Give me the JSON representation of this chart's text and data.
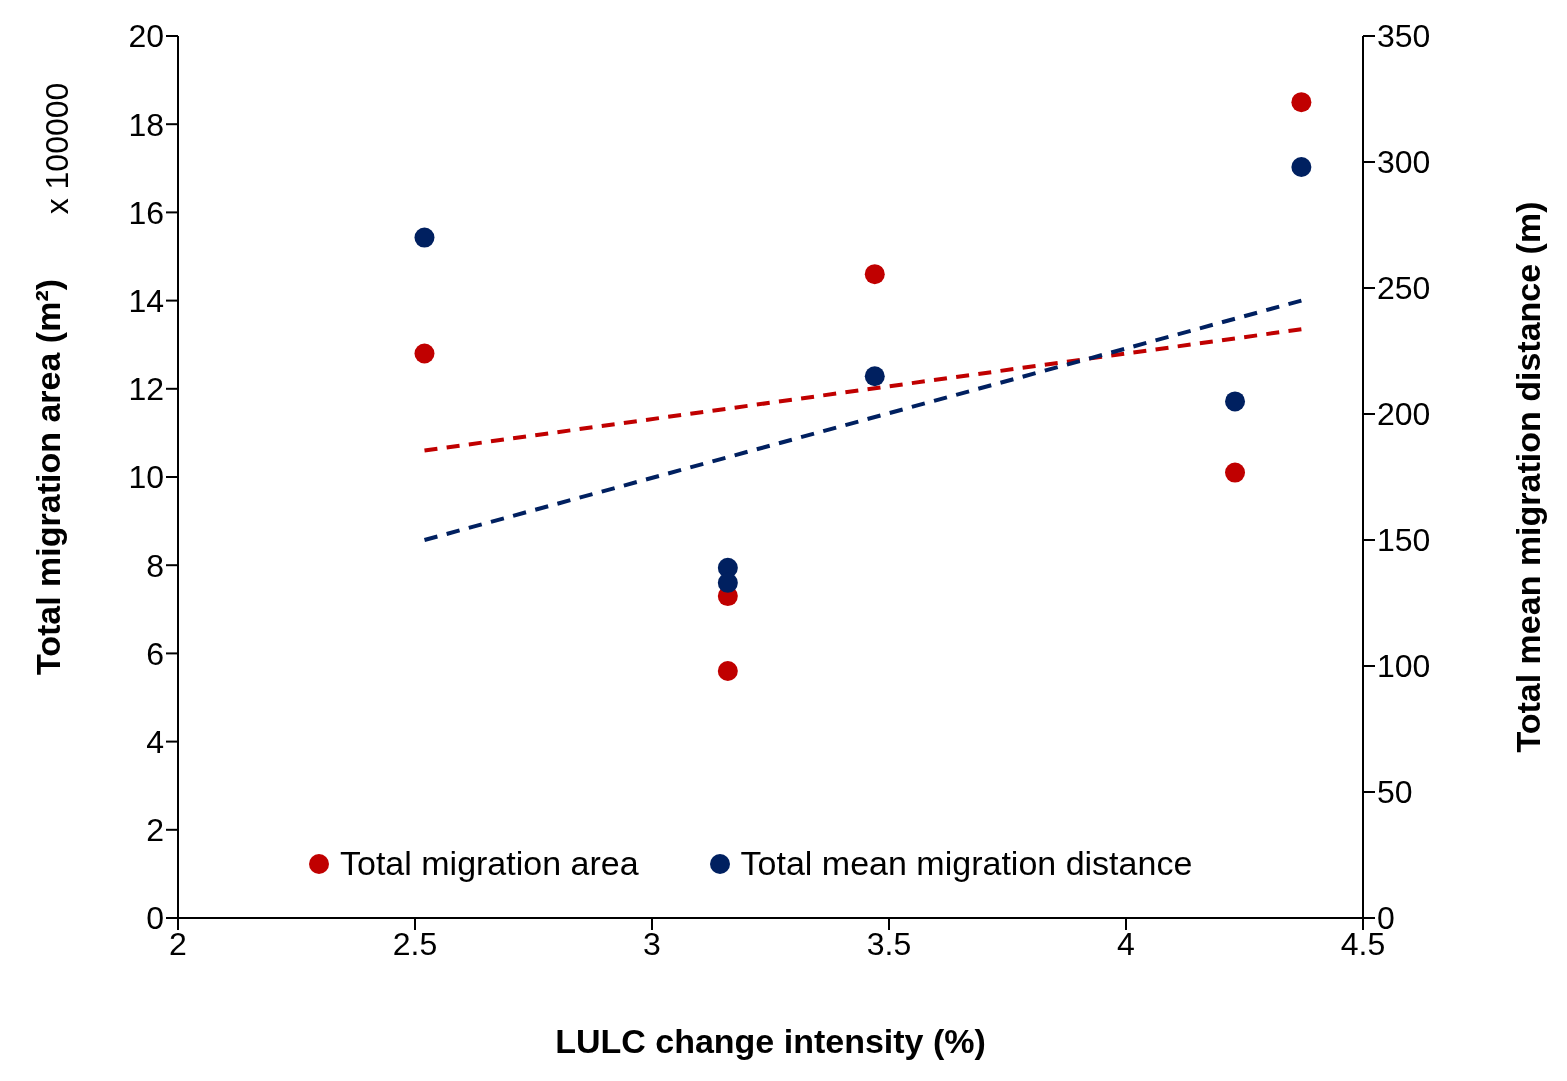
{
  "chart_data": {
    "type": "scatter",
    "xlabel": "LULC change intensity (%)",
    "ylabel": "Total migration area (m²)",
    "y2label": "Total mean migration distance (m)",
    "annotations": [
      "x 100000"
    ],
    "xlim": [
      2,
      4.5
    ],
    "xticks": [
      2,
      2.5,
      3,
      3.5,
      4,
      4.5
    ],
    "ylim": [
      0,
      20
    ],
    "yticks": [
      0,
      2,
      4,
      6,
      8,
      10,
      12,
      14,
      16,
      18,
      20
    ],
    "y2lim": [
      0,
      350
    ],
    "y2ticks": [
      0,
      50,
      100,
      150,
      200,
      250,
      300,
      350
    ],
    "legend": "bottom",
    "marker": "circle",
    "series": [
      {
        "name": "Total migration area",
        "color": "#c00000",
        "x": [
          2.52,
          3.16,
          3.16,
          3.47,
          4.23,
          4.37
        ],
        "values": [
          12.8,
          7.3,
          5.6,
          14.6,
          10.1,
          18.5
        ]
      },
      {
        "name": "Total mean migration distance",
        "color": "#002060",
        "axis": "y2",
        "x": [
          2.52,
          3.16,
          3.16,
          3.47,
          4.23,
          4.37
        ],
        "values": [
          270,
          139,
          133,
          215,
          205,
          298
        ]
      },
      {
        "type": "line",
        "color": "#c00000",
        "line_style": "dashed",
        "marker": "none",
        "x": [
          2.52,
          4.37
        ],
        "values": [
          10.6,
          13.35
        ]
      },
      {
        "type": "line",
        "color": "#002060",
        "line_style": "dashed",
        "marker": "none",
        "axis": "y2",
        "x": [
          2.52,
          4.37
        ],
        "values": [
          150,
          245
        ]
      }
    ]
  }
}
